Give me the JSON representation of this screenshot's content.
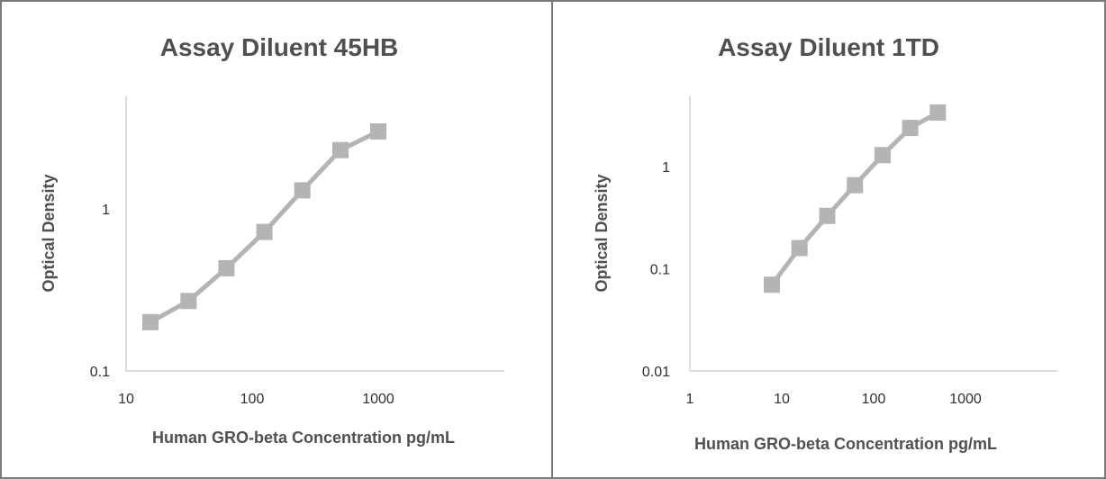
{
  "colors": {
    "series": "#b4b4b4",
    "axis": "#d4d4d4",
    "text": "#505050",
    "border": "#7a7a7a"
  },
  "chart_data": [
    {
      "type": "line",
      "title": "Assay Diluent 45HB",
      "xlabel": "Human GRO-beta Concentration pg/mL",
      "ylabel": "Optical Density",
      "x_scale": "log",
      "y_scale": "log",
      "xlim": [
        10,
        10000
      ],
      "ylim": [
        0.1,
        5
      ],
      "x_ticks": [
        "10",
        "100",
        "1000"
      ],
      "y_ticks": [
        "0.1",
        "1"
      ],
      "grid": false,
      "marker": "square",
      "series": [
        {
          "x": [
            15.6,
            31.25,
            62.5,
            125,
            250,
            500,
            1000
          ],
          "y": [
            0.2,
            0.27,
            0.43,
            0.72,
            1.3,
            2.3,
            3.0
          ]
        }
      ]
    },
    {
      "type": "line",
      "title": "Assay Diluent 1TD",
      "xlabel": "Human GRO-beta Concentration pg/mL",
      "ylabel": "Optical Density",
      "x_scale": "log",
      "y_scale": "log",
      "xlim": [
        1,
        10000
      ],
      "ylim": [
        0.01,
        5
      ],
      "x_ticks": [
        "1",
        "10",
        "100",
        "1000"
      ],
      "y_ticks": [
        "0.01",
        "0.1",
        "1"
      ],
      "grid": false,
      "marker": "square",
      "series": [
        {
          "x": [
            7.8,
            15.6,
            31.25,
            62.5,
            125,
            250,
            500
          ],
          "y": [
            0.07,
            0.16,
            0.33,
            0.66,
            1.3,
            2.4,
            3.4
          ]
        }
      ]
    }
  ]
}
